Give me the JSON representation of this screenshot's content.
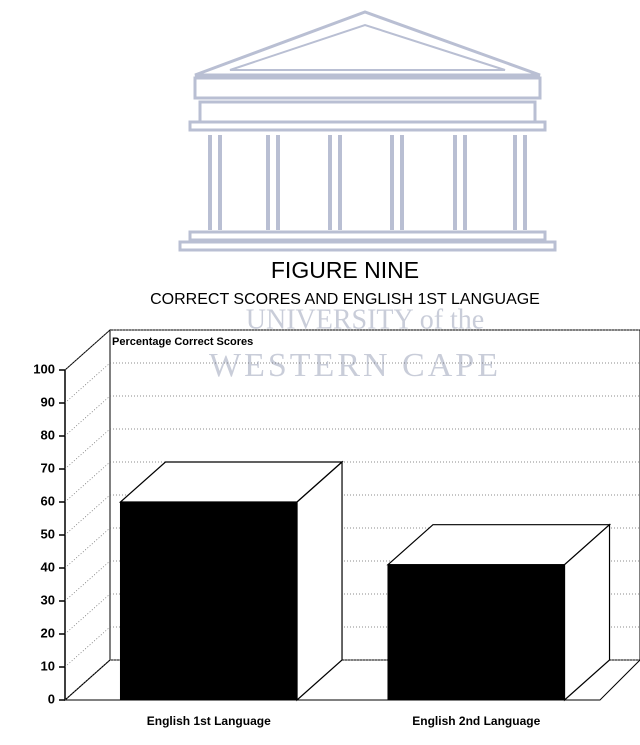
{
  "watermark": [
    "UNIVERSITY of the",
    "WESTERN CAPE"
  ],
  "chart_data": {
    "type": "bar3d",
    "title": "FIGURE NINE",
    "subtitle": "CORRECT SCORES AND ENGLISH 1ST LANGUAGE",
    "y_label": "Percentage Correct Scores",
    "categories": [
      "English 1st Language",
      "English 2nd Language"
    ],
    "values": [
      60,
      41
    ],
    "color": "#000000",
    "ylim": [
      0,
      100
    ],
    "yticks": [
      0,
      10,
      20,
      30,
      40,
      50,
      60,
      70,
      80,
      90,
      100
    ],
    "grid": true
  }
}
